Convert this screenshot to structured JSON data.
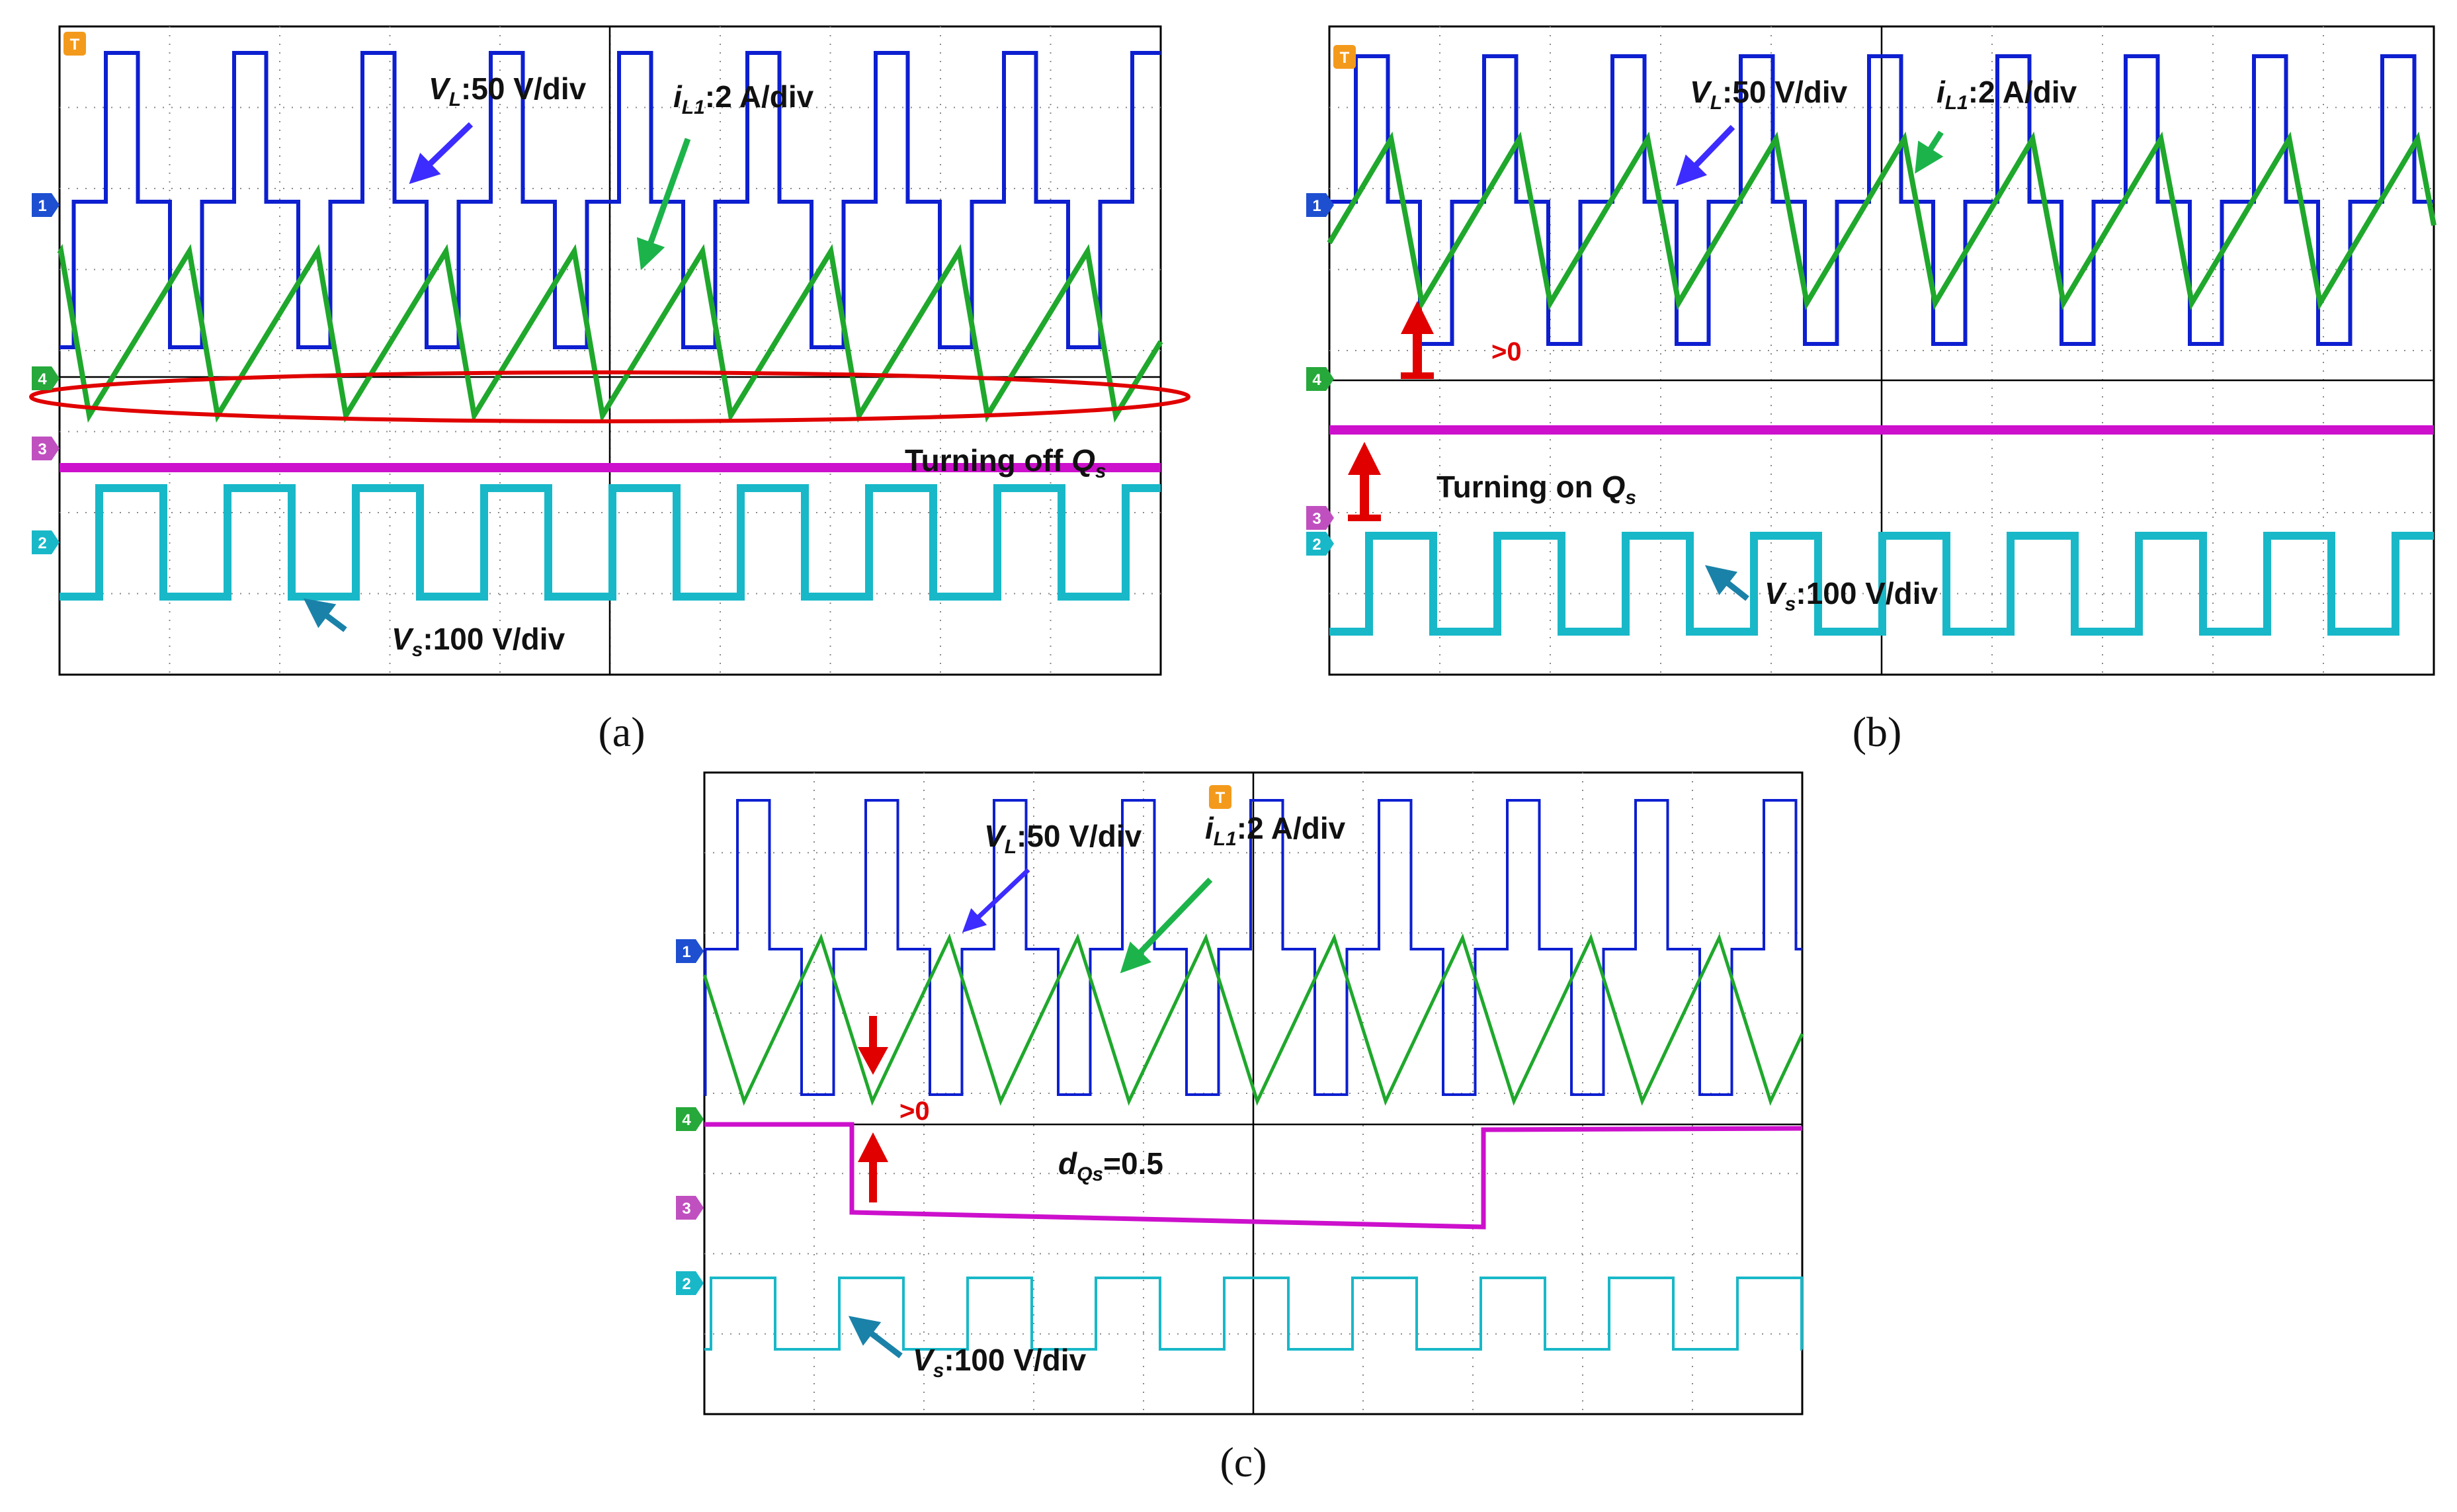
{
  "figure": {
    "captions": [
      "(a)",
      "(b)",
      "(c)"
    ],
    "colors": {
      "vl": "#0d1fd0",
      "il": "#1fa82c",
      "qs": "#cc10cc",
      "vs": "#18b8c8",
      "arrow_vl": "#3c2cff",
      "arrow_il": "#1cb44a",
      "arrow_vs": "#1a82a8",
      "highlight": "#e00000"
    },
    "trace_markers": [
      "T",
      "1",
      "2",
      "3",
      "4"
    ]
  },
  "labels": {
    "vl": {
      "sym": "V",
      "sub": "L",
      "rest": ":50 V/div"
    },
    "il": {
      "sym": "i",
      "sub": "L1",
      "rest": ":2 A/div"
    },
    "vs": {
      "sym": "V",
      "sub": "s",
      "rest": ":100 V/div"
    },
    "off_text": "Turning off ",
    "off_sym": "Q",
    "off_sub": "s",
    "on_text": "Turning on ",
    "on_sym": "Q",
    "on_sub": "s",
    "gt0": ">0",
    "d_sym": "d",
    "d_sub": "Qs",
    "d_rest": "=0.5"
  },
  "chart_data": [
    {
      "panel": "a",
      "type": "line",
      "title": "",
      "series": [
        {
          "name": "V_L",
          "scale": "50 V/div",
          "shape": "three-level square wave",
          "periods": 8
        },
        {
          "name": "i_L1",
          "scale": "2 A/div",
          "shape": "triangular current, valleys reach zero",
          "periods": 8
        },
        {
          "name": "Q_s gate",
          "state": "off"
        },
        {
          "name": "V_s",
          "scale": "100 V/div",
          "shape": "square wave",
          "periods": 8
        }
      ],
      "annotations": [
        "V_L:50 V/div",
        "i_L1:2 A/div",
        "Turning off Q_s",
        "V_s:100 V/div"
      ]
    },
    {
      "panel": "b",
      "type": "line",
      "title": "",
      "series": [
        {
          "name": "V_L",
          "scale": "50 V/div",
          "shape": "three-level square wave",
          "periods": 8
        },
        {
          "name": "i_L1",
          "scale": "2 A/div",
          "shape": "triangular current, valleys above zero",
          "periods": 8
        },
        {
          "name": "Q_s gate",
          "state": "on"
        },
        {
          "name": "V_s",
          "scale": "100 V/div",
          "shape": "square wave",
          "periods": 8
        }
      ],
      "annotations": [
        "V_L:50 V/div",
        "i_L1:2 A/div",
        ">0",
        "Turning on Q_s",
        "V_s:100 V/div"
      ]
    },
    {
      "panel": "c",
      "type": "line",
      "title": "",
      "series": [
        {
          "name": "V_L",
          "scale": "50 V/div",
          "shape": "three-level square wave",
          "periods": 8
        },
        {
          "name": "i_L1",
          "scale": "2 A/div",
          "shape": "triangular current",
          "periods": 8
        },
        {
          "name": "Q_s gate",
          "duty": 0.5
        },
        {
          "name": "V_s",
          "scale": "100 V/div",
          "shape": "square wave",
          "periods": 8
        }
      ],
      "annotations": [
        "V_L:50 V/div",
        "i_L1:2 A/div",
        ">0",
        "d_Qs=0.5",
        "V_s:100 V/div"
      ]
    }
  ]
}
